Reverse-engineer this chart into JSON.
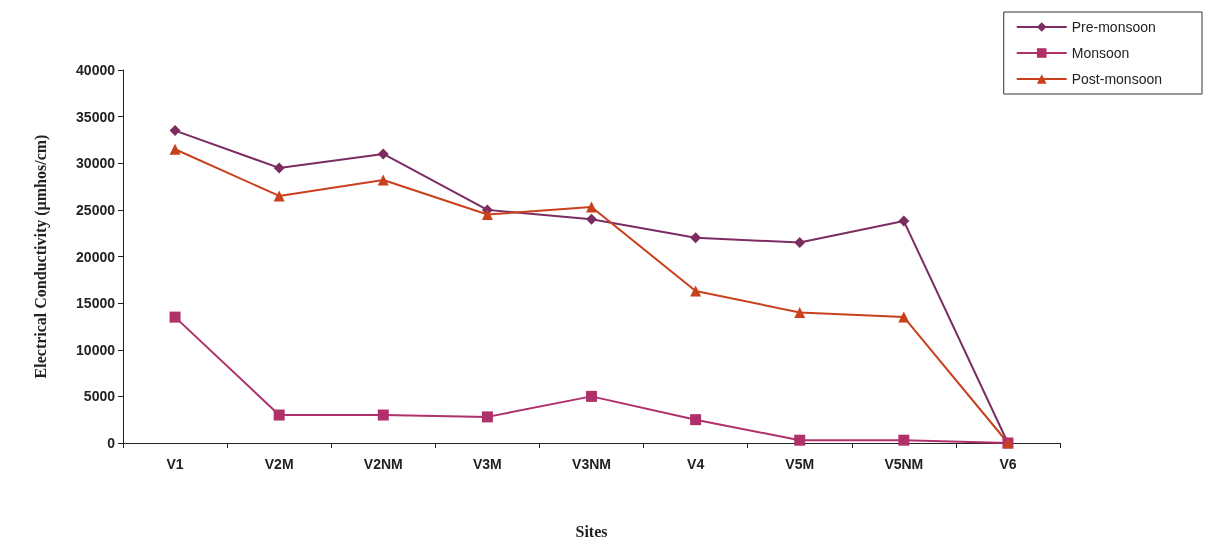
{
  "chart_data": {
    "type": "line",
    "xlabel": "Sites",
    "ylabel": "Electrical Conductivity (µmhos/cm)",
    "categories": [
      "V1",
      "V2M",
      "V2NM",
      "V3M",
      "V3NM",
      "V4",
      "V5M",
      "V5NM",
      "V6"
    ],
    "series": [
      {
        "name": "Pre-monsoon",
        "color": "#7b2d62",
        "marker": "diamond",
        "values": [
          33500,
          29500,
          31000,
          25000,
          24000,
          22000,
          21500,
          23800,
          0
        ]
      },
      {
        "name": "Monsoon",
        "color": "#b0306a",
        "marker": "square",
        "values": [
          13500,
          3000,
          3000,
          2800,
          5000,
          2500,
          300,
          300,
          0
        ]
      },
      {
        "name": "Post-monsoon",
        "color": "#c8401c",
        "marker": "triangle",
        "values": [
          31500,
          26500,
          28200,
          24500,
          25300,
          16300,
          14000,
          13500,
          0
        ]
      }
    ],
    "ylim": [
      0,
      40000
    ],
    "yticks": [
      0,
      5000,
      10000,
      15000,
      20000,
      25000,
      30000,
      35000,
      40000
    ],
    "grid": false,
    "legend": "top right",
    "line_style": "solid"
  }
}
